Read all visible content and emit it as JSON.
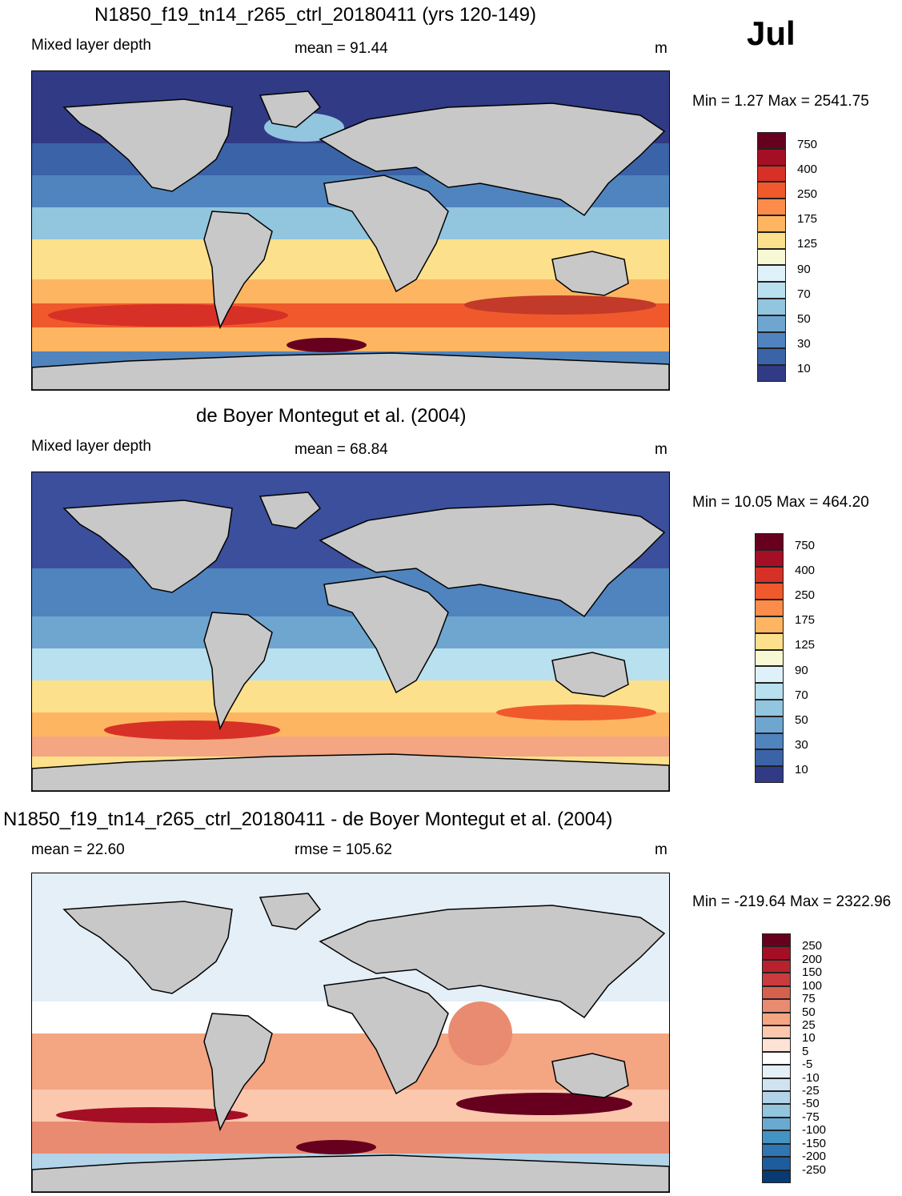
{
  "month": "Jul",
  "units": "m",
  "panels": [
    {
      "title": "N1850_f19_tn14_r265_ctrl_20180411 (yrs 120-149)",
      "left_label": "Mixed layer depth",
      "center_label": "mean =  91.44",
      "units": "m",
      "minmax": "Min =   1.27 Max = 2541.75",
      "scale_ticks": [
        "750",
        "400",
        "250",
        "175",
        "125",
        "90",
        "70",
        "50",
        "30",
        "10"
      ],
      "scale_colors": [
        "#67001f",
        "#a50f26",
        "#d73027",
        "#f0592b",
        "#fb8c4a",
        "#fdb561",
        "#fde08b",
        "#f6f9d4",
        "#dff1f8",
        "#b8e0ee",
        "#92c5de",
        "#6fa6d0",
        "#4f84bf",
        "#3b63a8",
        "#313a85"
      ],
      "variant": "model"
    },
    {
      "title": "de Boyer Montegut et al. (2004)",
      "left_label": "Mixed layer depth",
      "center_label": "mean =  68.84",
      "units": "m",
      "minmax": "Min =  10.05 Max = 464.20",
      "scale_ticks": [
        "750",
        "400",
        "250",
        "175",
        "125",
        "90",
        "70",
        "50",
        "30",
        "10"
      ],
      "scale_colors": [
        "#67001f",
        "#a50f26",
        "#d73027",
        "#f0592b",
        "#fb8c4a",
        "#fdb561",
        "#fde08b",
        "#f6f9d4",
        "#dff1f8",
        "#b8e0ee",
        "#92c5de",
        "#6fa6d0",
        "#4f84bf",
        "#3b63a8",
        "#313a85"
      ],
      "variant": "obs"
    },
    {
      "title": "N1850_f19_tn14_r265_ctrl_20180411 - de Boyer Montegut et al. (2004)",
      "left_label": "mean =  22.60",
      "center_label": "rmse = 105.62",
      "units": "m",
      "minmax": "Min = -219.64 Max = 2322.96",
      "scale_ticks": [
        "250",
        "200",
        "150",
        "100",
        "75",
        "50",
        "25",
        "10",
        "5",
        "-5",
        "-10",
        "-25",
        "-50",
        "-75",
        "-100",
        "-150",
        "-200",
        "-250"
      ],
      "scale_colors": [
        "#67001f",
        "#a50f26",
        "#b8222f",
        "#cb3a3c",
        "#d6604d",
        "#e98b71",
        "#f4a582",
        "#fbc8ae",
        "#fde3d6",
        "#ffffff",
        "#e4eff7",
        "#cfe3f0",
        "#b2d3e8",
        "#92c5de",
        "#6aa9d0",
        "#4393c3",
        "#2f76b4",
        "#1f5c9e",
        "#083a73"
      ],
      "variant": "diff"
    }
  ]
}
